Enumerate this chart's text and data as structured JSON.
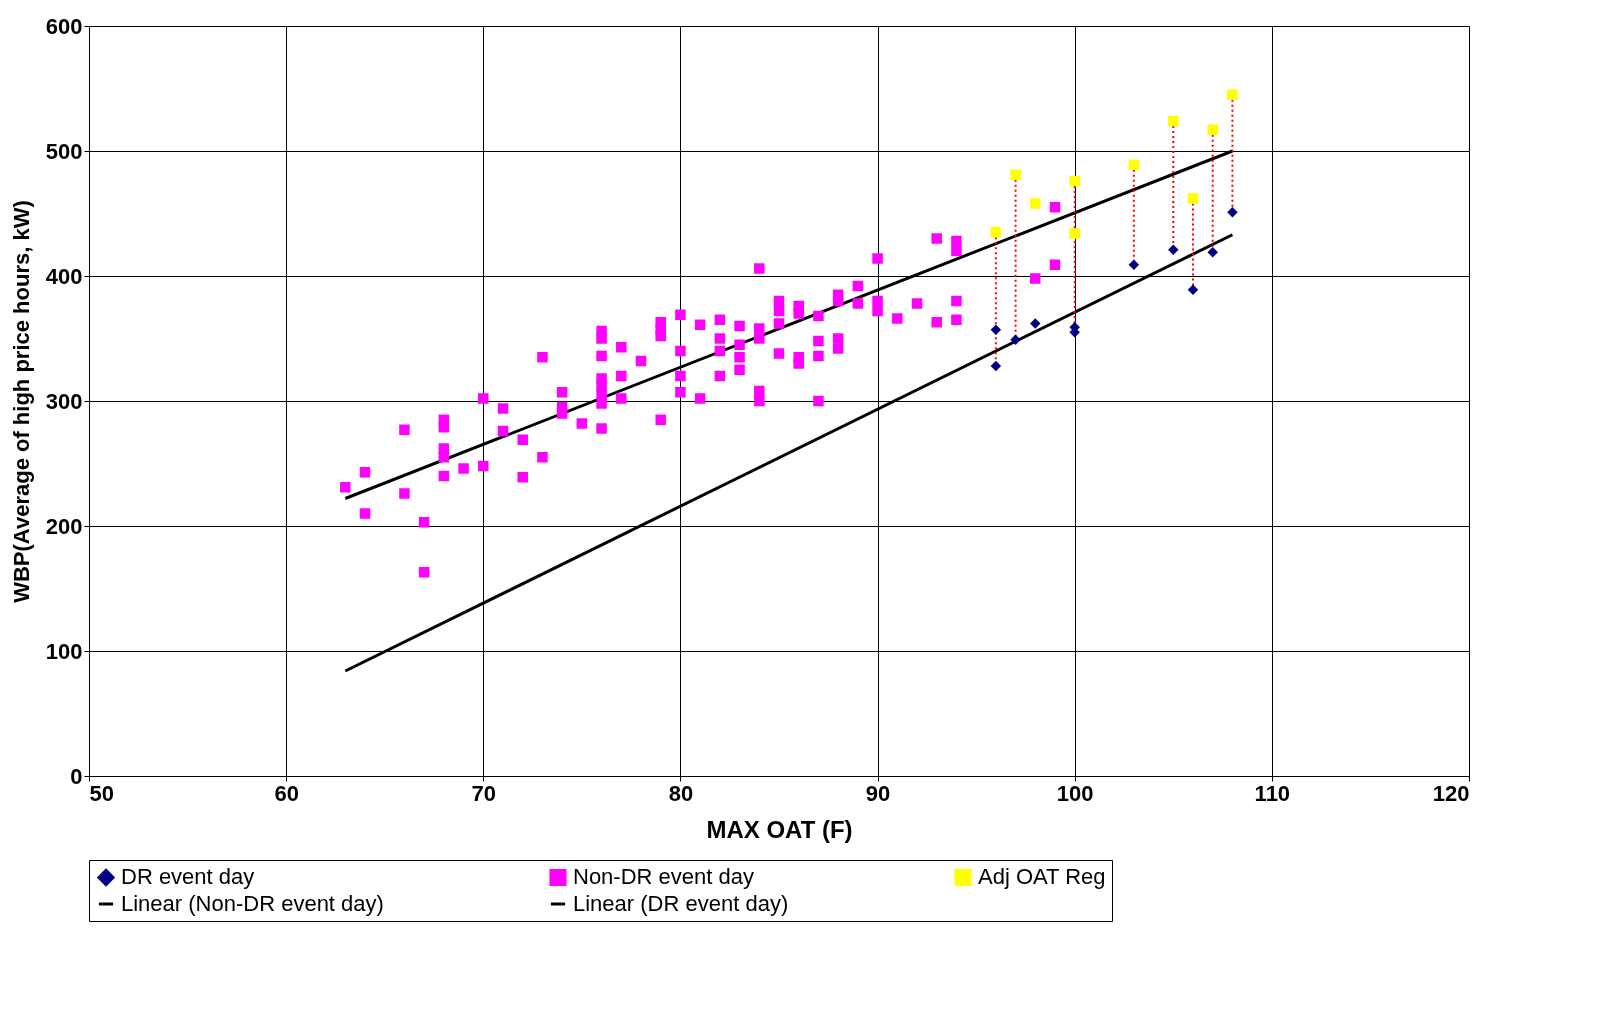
{
  "chart_data": {
    "type": "scatter",
    "xlabel": "MAX OAT (F)",
    "ylabel": "WBP(Average of high price hours, kW)",
    "xlim": [
      50,
      120
    ],
    "xticks": [
      50,
      60,
      70,
      80,
      90,
      100,
      110,
      120
    ],
    "ylim": [
      0,
      600
    ],
    "yticks": [
      0,
      100,
      200,
      300,
      400,
      500,
      600
    ],
    "grid": true,
    "legend": "bottom",
    "series": [
      {
        "name": "DR event day",
        "marker": "diamond",
        "color": "#000080",
        "x": [
          96,
          96,
          97,
          98,
          100,
          100,
          103,
          105,
          106,
          107,
          108
        ],
        "values": [
          357,
          328,
          349,
          362,
          359,
          355,
          409,
          421,
          389,
          419,
          451
        ]
      },
      {
        "name": "Non-DR event day",
        "marker": "square",
        "color": "#ff00ff",
        "x": [
          63,
          64,
          64,
          66,
          66,
          67,
          67,
          68,
          68,
          68,
          68,
          68,
          69,
          70,
          70,
          71,
          71,
          72,
          72,
          73,
          73,
          74,
          74,
          74,
          75,
          76,
          76,
          76,
          76,
          76,
          76,
          76,
          76,
          77,
          77,
          77,
          78,
          79,
          79,
          79,
          79,
          80,
          80,
          80,
          80,
          81,
          81,
          82,
          82,
          82,
          82,
          83,
          83,
          83,
          83,
          84,
          84,
          84,
          84,
          84,
          85,
          85,
          85,
          85,
          86,
          86,
          86,
          86,
          87,
          87,
          87,
          87,
          88,
          88,
          88,
          88,
          89,
          89,
          90,
          90,
          90,
          91,
          92,
          93,
          93,
          94,
          94,
          94,
          94,
          98,
          99,
          99
        ],
        "values": [
          231,
          243,
          210,
          277,
          226,
          203,
          163,
          285,
          279,
          262,
          255,
          240,
          246,
          302,
          248,
          294,
          276,
          269,
          239,
          335,
          255,
          307,
          295,
          290,
          282,
          356,
          350,
          336,
          318,
          312,
          305,
          298,
          278,
          343,
          320,
          302,
          332,
          363,
          357,
          352,
          285,
          369,
          340,
          320,
          307,
          361,
          302,
          365,
          350,
          340,
          320,
          360,
          345,
          335,
          325,
          406,
          358,
          350,
          308,
          300,
          380,
          372,
          362,
          338,
          376,
          370,
          335,
          330,
          368,
          348,
          336,
          300,
          385,
          380,
          350,
          342,
          392,
          378,
          414,
          380,
          372,
          366,
          378,
          430,
          363,
          428,
          420,
          380,
          365,
          398,
          455,
          409
        ]
      },
      {
        "name": "Adj OAT Reg",
        "marker": "square",
        "color": "#ffff00",
        "x": [
          96,
          97,
          98,
          100,
          100,
          103,
          105,
          106,
          107,
          108
        ],
        "values": [
          435,
          481,
          458,
          476,
          434,
          489,
          524,
          462,
          517,
          545
        ]
      },
      {
        "name": "Linear (Non-DR event day)",
        "type": "line",
        "marker": "none",
        "line_style": "solid",
        "color": "#000000",
        "x": [
          63,
          108
        ],
        "values": [
          222,
          500
        ]
      },
      {
        "name": "Linear (DR event day)",
        "type": "line",
        "marker": "none",
        "line_style": "solid",
        "color": "#000000",
        "x": [
          63,
          108
        ],
        "values": [
          84,
          433
        ]
      },
      {
        "type": "line",
        "marker": "none",
        "line_style": "dotted",
        "color": "#ff0000",
        "x": [
          96,
          96,
          null,
          97,
          97,
          null,
          100,
          100,
          null,
          103,
          103,
          null,
          105,
          105,
          null,
          106,
          106,
          null,
          107,
          107,
          null,
          108,
          108
        ],
        "values": [
          435,
          328,
          null,
          481,
          349,
          null,
          476,
          355,
          null,
          489,
          409,
          null,
          524,
          421,
          null,
          462,
          389,
          null,
          517,
          419,
          null,
          545,
          451
        ]
      }
    ]
  }
}
